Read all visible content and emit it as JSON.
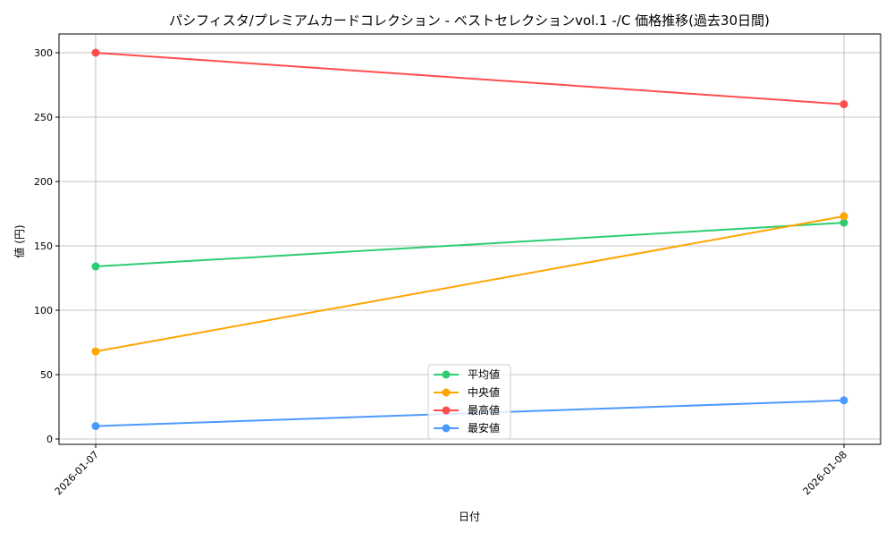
{
  "chart_data": {
    "type": "line",
    "title": "パシフィスタ/プレミアムカードコレクション - ベストセレクションvol.1 -/C 価格推移(過去30日間)",
    "xlabel": "日付",
    "ylabel": "値 (円)",
    "x": [
      "2026-01-07",
      "2026-01-08"
    ],
    "ylim": [
      -6,
      315
    ],
    "yticks": [
      0,
      50,
      100,
      150,
      200,
      250,
      300
    ],
    "grid": true,
    "legend_position": "bottom-center",
    "series": [
      {
        "name": "平均値",
        "color": "#2ecc71",
        "values": [
          134,
          168
        ]
      },
      {
        "name": "中央値",
        "color": "#ffa500",
        "values": [
          68,
          173
        ]
      },
      {
        "name": "最高値",
        "color": "#ff4d4d",
        "values": [
          300,
          260
        ]
      },
      {
        "name": "最安値",
        "color": "#4d9aff",
        "values": [
          10,
          30
        ]
      }
    ]
  }
}
